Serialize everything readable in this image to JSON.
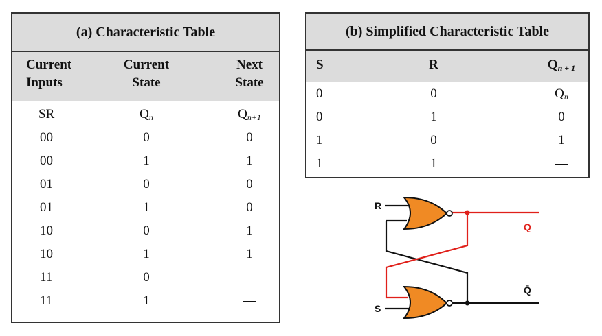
{
  "table_a": {
    "title": "(a) Characteristic Table",
    "headers": [
      [
        "Current",
        "Inputs"
      ],
      [
        "Current",
        "State"
      ],
      [
        "Next",
        "State"
      ]
    ],
    "symbol_row": {
      "inputs": "SR",
      "current": "Q",
      "current_sub": "n",
      "next": "Q",
      "next_sub": "n+1"
    },
    "rows": [
      [
        "00",
        "0",
        "0"
      ],
      [
        "00",
        "1",
        "1"
      ],
      [
        "01",
        "0",
        "0"
      ],
      [
        "01",
        "1",
        "0"
      ],
      [
        "10",
        "0",
        "1"
      ],
      [
        "10",
        "1",
        "1"
      ],
      [
        "11",
        "0",
        "—"
      ],
      [
        "11",
        "1",
        "—"
      ]
    ]
  },
  "table_b": {
    "title": "(b) Simplified Characteristic Table",
    "headers": [
      "S",
      "R",
      "Q",
      "n + 1"
    ],
    "rows": [
      [
        "0",
        "0",
        "Q",
        "n"
      ],
      [
        "0",
        "1",
        "0",
        ""
      ],
      [
        "1",
        "0",
        "1",
        ""
      ],
      [
        "1",
        "1",
        "—",
        ""
      ]
    ]
  },
  "circuit": {
    "input_top": "R",
    "input_bottom": "S",
    "output_top": "Q",
    "output_bottom": "Q̄",
    "colors": {
      "gate_fill": "#f08a24",
      "feedback_wire": "#e0201a",
      "wire": "#111111",
      "output_label": "#e0201a"
    }
  }
}
